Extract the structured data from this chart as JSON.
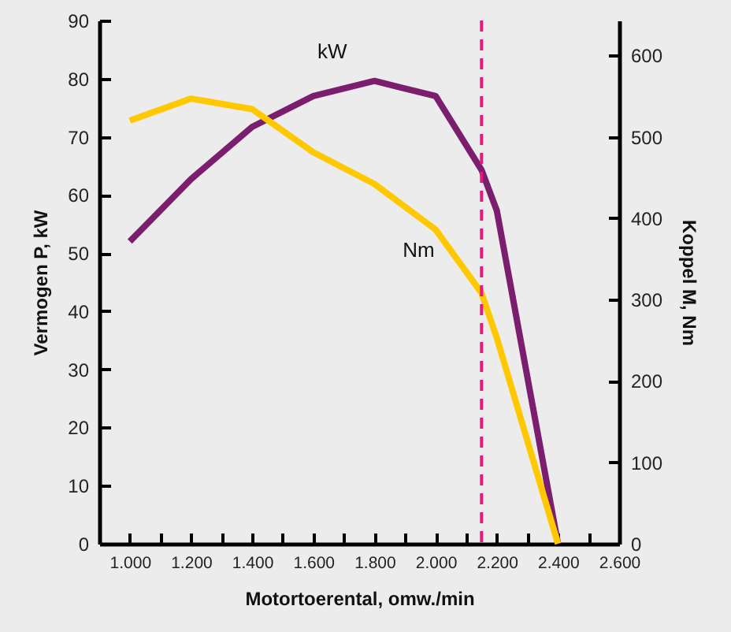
{
  "chart_data": {
    "type": "line",
    "xlabel": "Motortoerental, omw./min",
    "ylabel": "Vermogen P, kW",
    "y2label": "Koppel M, Nm",
    "x": [
      1000,
      1200,
      1400,
      1600,
      1800,
      2000,
      2150,
      2200,
      2400
    ],
    "series": [
      {
        "name": "kW",
        "color": "#7b1e6e",
        "values": [
          52,
          62.7,
          71.7,
          77,
          79.6,
          77,
          64.3,
          57.3,
          0
        ]
      },
      {
        "name": "Nm",
        "color": "#ffc800",
        "axis": "y2",
        "values": [
          520,
          547,
          534,
          481,
          442,
          386,
          308,
          253,
          0
        ]
      }
    ],
    "xlim": [
      900,
      2600
    ],
    "xticks": [
      {
        "value": 1000,
        "label": "1.000"
      },
      {
        "value": 1100,
        "label": null
      },
      {
        "value": 1200,
        "label": "1.200"
      },
      {
        "value": 1300,
        "label": null
      },
      {
        "value": 1400,
        "label": "1.400"
      },
      {
        "value": 1500,
        "label": null
      },
      {
        "value": 1600,
        "label": "1.600"
      },
      {
        "value": 1700,
        "label": null
      },
      {
        "value": 1800,
        "label": "1.800"
      },
      {
        "value": 1900,
        "label": null
      },
      {
        "value": 2000,
        "label": "2.000"
      },
      {
        "value": 2100,
        "label": null
      },
      {
        "value": 2200,
        "label": "2.200"
      },
      {
        "value": 2300,
        "label": null
      },
      {
        "value": 2400,
        "label": "2.400"
      },
      {
        "value": 2500,
        "label": null
      },
      {
        "value": 2600,
        "label": "2.600"
      }
    ],
    "ylim": [
      0,
      90
    ],
    "yticks": [
      0,
      10,
      20,
      30,
      40,
      50,
      60,
      70,
      80,
      90
    ],
    "y2lim": [
      0,
      643
    ],
    "y2ticks": [
      0,
      100,
      200,
      300,
      400,
      500,
      600
    ],
    "ref_lines": [
      {
        "axis": "x",
        "value": 2150,
        "color": "#e5197e",
        "line_style": "dashed"
      }
    ],
    "line_style": "solid",
    "marker": "none"
  }
}
